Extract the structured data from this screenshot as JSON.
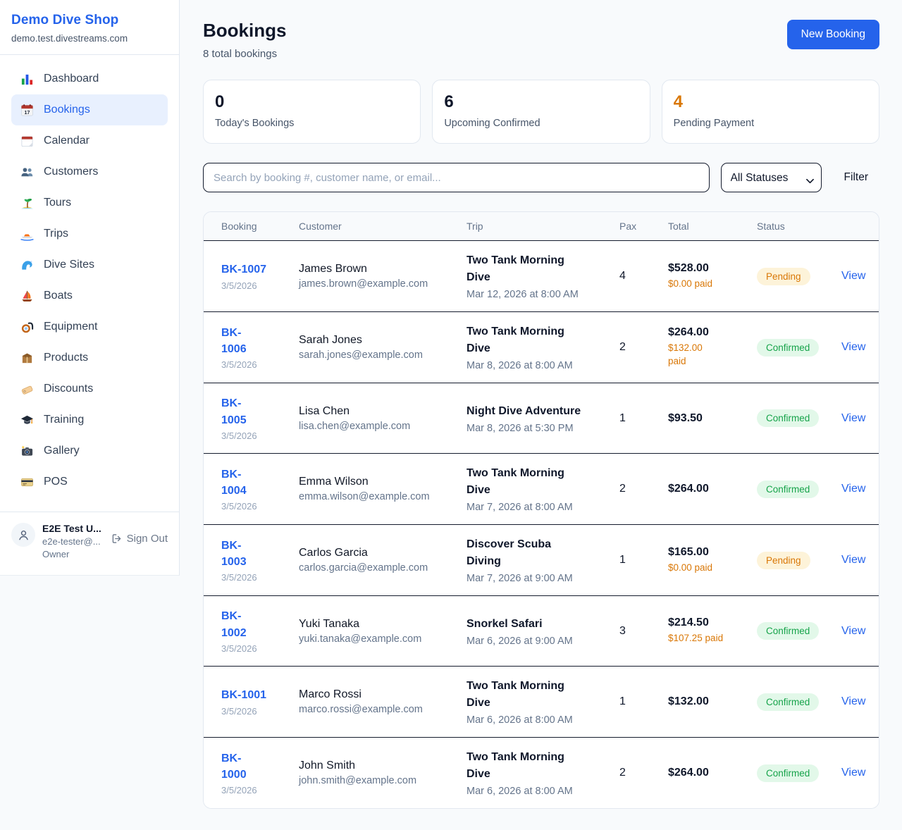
{
  "sidebar": {
    "shop_name": "Demo Dive Shop",
    "shop_domain": "demo.test.divestreams.com",
    "items": [
      {
        "id": "dashboard",
        "label": "Dashboard",
        "icon": "bar-chart",
        "active": false
      },
      {
        "id": "bookings",
        "label": "Bookings",
        "icon": "calendar-date",
        "active": true
      },
      {
        "id": "calendar",
        "label": "Calendar",
        "icon": "calendar",
        "active": false
      },
      {
        "id": "customers",
        "label": "Customers",
        "icon": "people",
        "active": false
      },
      {
        "id": "tours",
        "label": "Tours",
        "icon": "island",
        "active": false
      },
      {
        "id": "trips",
        "label": "Trips",
        "icon": "speedboat",
        "active": false
      },
      {
        "id": "dive-sites",
        "label": "Dive Sites",
        "icon": "wave",
        "active": false
      },
      {
        "id": "boats",
        "label": "Boats",
        "icon": "sailboat",
        "active": false
      },
      {
        "id": "equipment",
        "label": "Equipment",
        "icon": "dive-mask",
        "active": false
      },
      {
        "id": "products",
        "label": "Products",
        "icon": "package",
        "active": false
      },
      {
        "id": "discounts",
        "label": "Discounts",
        "icon": "tag",
        "active": false
      },
      {
        "id": "training",
        "label": "Training",
        "icon": "graduation-cap",
        "active": false
      },
      {
        "id": "gallery",
        "label": "Gallery",
        "icon": "camera",
        "active": false
      },
      {
        "id": "pos",
        "label": "POS",
        "icon": "credit-card",
        "active": false
      }
    ],
    "user": {
      "name": "E2E Test U...",
      "email": "e2e-tester@...",
      "role": "Owner",
      "sign_out_label": "Sign Out"
    }
  },
  "header": {
    "title": "Bookings",
    "subtitle": "8 total bookings",
    "new_booking_label": "New Booking"
  },
  "stats": [
    {
      "value": "0",
      "label": "Today's Bookings",
      "accent": "dark"
    },
    {
      "value": "6",
      "label": "Upcoming Confirmed",
      "accent": "dark"
    },
    {
      "value": "4",
      "label": "Pending Payment",
      "accent": "orange"
    }
  ],
  "filters": {
    "search_placeholder": "Search by booking #, customer name, or email...",
    "status_selected": "All Statuses",
    "filter_label": "Filter"
  },
  "table": {
    "columns": [
      "Booking",
      "Customer",
      "Trip",
      "Pax",
      "Total",
      "Status"
    ],
    "view_label": "View",
    "rows": [
      {
        "booking_id": "BK-1007",
        "booking_date": "3/5/2026",
        "customer_name": "James Brown",
        "customer_email": "james.brown@example.com",
        "trip_name": "Two Tank Morning\nDive",
        "trip_datetime": "Mar 12, 2026 at 8:00 AM",
        "pax": "4",
        "total": "$528.00",
        "paid": "$0.00 paid",
        "status": "Pending"
      },
      {
        "booking_id": "BK-\n1006",
        "booking_date": "3/5/2026",
        "customer_name": "Sarah Jones",
        "customer_email": "sarah.jones@example.com",
        "trip_name": "Two Tank Morning\nDive",
        "trip_datetime": "Mar 8, 2026 at 8:00 AM",
        "pax": "2",
        "total": "$264.00",
        "paid": "$132.00\npaid",
        "status": "Confirmed"
      },
      {
        "booking_id": "BK-\n1005",
        "booking_date": "3/5/2026",
        "customer_name": "Lisa Chen",
        "customer_email": "lisa.chen@example.com",
        "trip_name": "Night Dive Adventure",
        "trip_datetime": "Mar 8, 2026 at 5:30 PM",
        "pax": "1",
        "total": "$93.50",
        "paid": "",
        "status": "Confirmed"
      },
      {
        "booking_id": "BK-\n1004",
        "booking_date": "3/5/2026",
        "customer_name": "Emma Wilson",
        "customer_email": "emma.wilson@example.com",
        "trip_name": "Two Tank Morning\nDive",
        "trip_datetime": "Mar 7, 2026 at 8:00 AM",
        "pax": "2",
        "total": "$264.00",
        "paid": "",
        "status": "Confirmed"
      },
      {
        "booking_id": "BK-\n1003",
        "booking_date": "3/5/2026",
        "customer_name": "Carlos Garcia",
        "customer_email": "carlos.garcia@example.com",
        "trip_name": "Discover Scuba\nDiving",
        "trip_datetime": "Mar 7, 2026 at 9:00 AM",
        "pax": "1",
        "total": "$165.00",
        "paid": "$0.00 paid",
        "status": "Pending"
      },
      {
        "booking_id": "BK-\n1002",
        "booking_date": "3/5/2026",
        "customer_name": "Yuki Tanaka",
        "customer_email": "yuki.tanaka@example.com",
        "trip_name": "Snorkel Safari",
        "trip_datetime": "Mar 6, 2026 at 9:00 AM",
        "pax": "3",
        "total": "$214.50",
        "paid": "$107.25 paid",
        "status": "Confirmed"
      },
      {
        "booking_id": "BK-1001",
        "booking_date": "3/5/2026",
        "customer_name": "Marco Rossi",
        "customer_email": "marco.rossi@example.com",
        "trip_name": "Two Tank Morning\nDive",
        "trip_datetime": "Mar 6, 2026 at 8:00 AM",
        "pax": "1",
        "total": "$132.00",
        "paid": "",
        "status": "Confirmed"
      },
      {
        "booking_id": "BK-\n1000",
        "booking_date": "3/5/2026",
        "customer_name": "John Smith",
        "customer_email": "john.smith@example.com",
        "trip_name": "Two Tank Morning\nDive",
        "trip_datetime": "Mar 6, 2026 at 8:00 AM",
        "pax": "2",
        "total": "$264.00",
        "paid": "",
        "status": "Confirmed"
      }
    ]
  },
  "colors": {
    "accent_blue": "#2563eb",
    "pending_orange": "#d97706",
    "confirmed_green": "#16a34a",
    "dark_border": "#141b2d",
    "page_bg": "#f8fafc"
  }
}
